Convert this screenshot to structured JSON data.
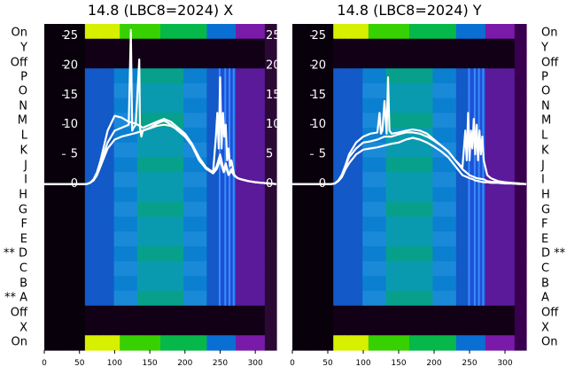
{
  "chart_data": [
    {
      "type": "heatmap",
      "title": "14.8 (LBC8=2024) X",
      "row_labels_left": [
        "On",
        "Y",
        "Off",
        "P",
        "O",
        "N",
        "M",
        "L",
        "K",
        "J",
        "I",
        "H",
        "G",
        "F",
        "E",
        "** D",
        "C",
        "B",
        "** A",
        "Off",
        "X",
        "On"
      ],
      "y_ticks": [
        0,
        5,
        10,
        15,
        20,
        25
      ],
      "x_ticks": [
        0,
        50,
        100,
        150,
        200,
        250,
        300
      ],
      "xlim": [
        0,
        330
      ],
      "ylim": [
        -28,
        27
      ],
      "series": [
        {
          "x": [
            0,
            40,
            60,
            65,
            70,
            75,
            80,
            90,
            100,
            110,
            120,
            130,
            140,
            150,
            160,
            170,
            180,
            190,
            200,
            210,
            220,
            230,
            240,
            245,
            250,
            255,
            258,
            262,
            266,
            270,
            275,
            280,
            290,
            300,
            310,
            320,
            330
          ],
          "y": [
            0,
            0,
            0,
            0.2,
            0.6,
            1.5,
            3,
            6,
            7.5,
            8,
            8.3,
            8.6,
            9,
            9.4,
            9.8,
            10,
            9.8,
            9.2,
            8.2,
            6.5,
            4.2,
            2.6,
            1.8,
            2.5,
            4,
            2,
            3,
            1.5,
            2.2,
            1.4,
            1,
            0.8,
            0.5,
            0.3,
            0.2,
            0.1,
            0
          ]
        },
        {
          "x": [
            0,
            40,
            60,
            65,
            70,
            75,
            80,
            90,
            100,
            110,
            120,
            130,
            140,
            150,
            160,
            170,
            180,
            190,
            200,
            210,
            220,
            230,
            240,
            245,
            250,
            255,
            258,
            262,
            266,
            270,
            275,
            280,
            290,
            300,
            310,
            320,
            330
          ],
          "y": [
            0,
            0,
            0,
            0.2,
            0.8,
            2,
            4,
            9,
            11.5,
            11.2,
            10.5,
            10.2,
            9.5,
            10,
            10.5,
            11,
            10.5,
            9.5,
            8.5,
            6.8,
            4.5,
            2.8,
            2,
            3,
            5,
            2.2,
            3.5,
            1.6,
            2.5,
            1.5,
            1,
            0.8,
            0.5,
            0.3,
            0.2,
            0.1,
            0
          ]
        },
        {
          "x": [
            0,
            40,
            60,
            65,
            70,
            75,
            80,
            90,
            100,
            110,
            120,
            123,
            125,
            127,
            130,
            135,
            136,
            138,
            140,
            150,
            160,
            170,
            180,
            190,
            200,
            210,
            220,
            230,
            240,
            244,
            246,
            248,
            250,
            252,
            254,
            256,
            258,
            260,
            262,
            264,
            266,
            270,
            275,
            280,
            290,
            300,
            310,
            320,
            330
          ],
          "y": [
            0,
            0,
            0,
            0.2,
            0.7,
            1.8,
            3.5,
            7,
            9,
            9.5,
            10,
            26,
            9,
            9.5,
            10,
            21,
            9.5,
            8,
            9,
            9.5,
            10.2,
            10.7,
            10,
            9,
            8,
            6.5,
            4,
            2.6,
            2,
            8,
            12,
            6,
            18,
            6,
            12,
            8,
            10,
            4,
            6,
            3,
            4,
            1.5,
            1,
            0.8,
            0.5,
            0.3,
            0.2,
            0.1,
            0
          ]
        }
      ]
    },
    {
      "type": "heatmap",
      "title": "14.8 (LBC8=2024) Y",
      "row_labels_right": [
        "On",
        "Y",
        "Off",
        "P",
        "O",
        "N",
        "M",
        "L",
        "K",
        "J",
        "I",
        "H",
        "G",
        "F",
        "E",
        "D **",
        "C",
        "B",
        "A",
        "Off",
        "X",
        "On"
      ],
      "y_ticks": [
        0,
        5,
        10,
        15,
        20,
        25
      ],
      "x_ticks": [
        0,
        50,
        100,
        150,
        200,
        250,
        300
      ],
      "xlim": [
        0,
        330
      ],
      "ylim": [
        -28,
        27
      ],
      "series": [
        {
          "x": [
            0,
            40,
            55,
            60,
            65,
            70,
            75,
            80,
            90,
            100,
            110,
            120,
            130,
            140,
            150,
            160,
            170,
            180,
            190,
            200,
            210,
            220,
            230,
            240,
            250,
            255,
            258,
            262,
            266,
            270,
            275,
            280,
            290,
            300,
            310,
            320,
            330
          ],
          "y": [
            0,
            0,
            0,
            0.1,
            0.5,
            1.2,
            2.5,
            3.5,
            5,
            5.8,
            6,
            6.2,
            6.5,
            6.8,
            7,
            7.5,
            7.8,
            7.5,
            7,
            6.3,
            5.5,
            4.5,
            3,
            1.5,
            1,
            0.8,
            0.6,
            0.5,
            0.4,
            0.3,
            0.3,
            0.2,
            0.2,
            0.1,
            0.1,
            0,
            0
          ]
        },
        {
          "x": [
            0,
            40,
            55,
            60,
            65,
            70,
            75,
            80,
            90,
            100,
            110,
            120,
            130,
            140,
            150,
            160,
            170,
            180,
            190,
            200,
            210,
            220,
            230,
            240,
            244,
            246,
            248,
            250,
            252,
            254,
            256,
            258,
            260,
            262,
            264,
            266,
            268,
            270,
            275,
            280,
            290,
            300,
            310,
            320,
            330
          ],
          "y": [
            0,
            0,
            0,
            0.1,
            0.6,
            1.5,
            3,
            4.5,
            6,
            7,
            7.2,
            7.5,
            8,
            8,
            8.4,
            8.7,
            8.7,
            8.5,
            8,
            7.3,
            6.5,
            5.5,
            4,
            2.8,
            9,
            4,
            12,
            4,
            9,
            6,
            11,
            5,
            10,
            4,
            9,
            5,
            8,
            4,
            1.5,
            1,
            0.5,
            0.3,
            0.2,
            0.1,
            0
          ]
        },
        {
          "x": [
            0,
            40,
            55,
            60,
            65,
            70,
            75,
            80,
            90,
            100,
            110,
            120,
            123,
            125,
            127,
            130,
            133,
            135,
            137,
            140,
            150,
            160,
            170,
            180,
            190,
            200,
            210,
            220,
            230,
            240,
            250,
            260,
            270,
            275,
            280,
            290,
            300,
            310,
            320,
            330
          ],
          "y": [
            0,
            0,
            0,
            0.1,
            0.6,
            1.6,
            3.2,
            5,
            7,
            8,
            8.5,
            8.7,
            12,
            8.5,
            9,
            14,
            8.5,
            18,
            9,
            8.5,
            8.7,
            9,
            9.2,
            9,
            8.5,
            7.5,
            6.5,
            5.5,
            4,
            2.5,
            1.5,
            1,
            0.8,
            0.5,
            0.4,
            0.3,
            0.2,
            0.1,
            0.1,
            0
          ]
        }
      ]
    }
  ]
}
